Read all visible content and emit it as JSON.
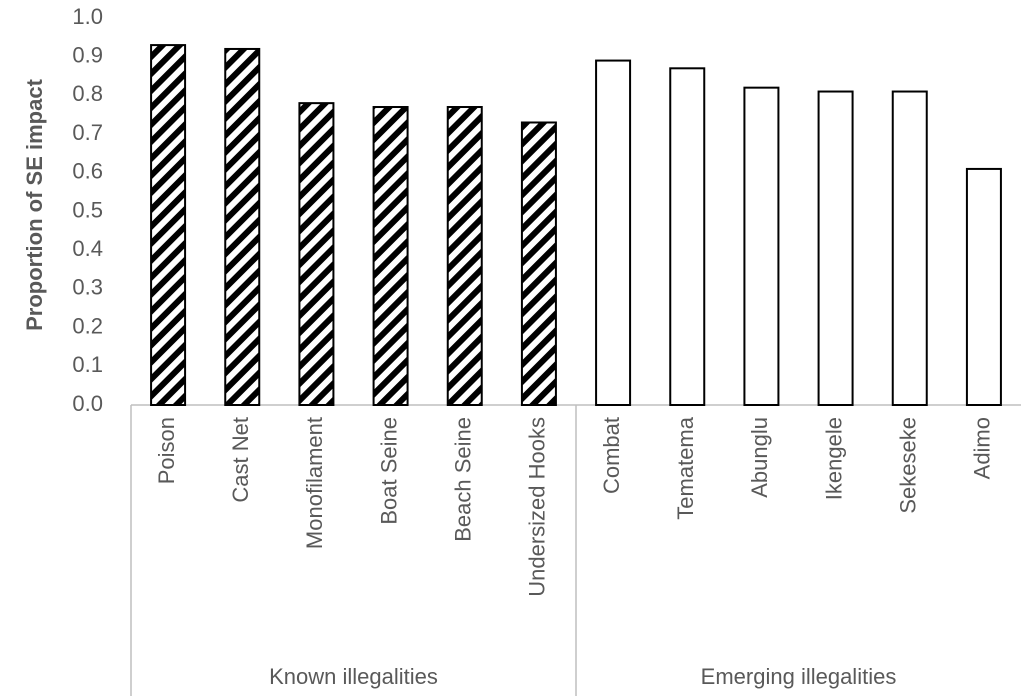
{
  "chart_data": {
    "type": "bar",
    "ylabel": "Proportion of SE impact",
    "xlabel": "",
    "ylim": [
      0,
      1.0
    ],
    "yticks": [
      "0.0",
      "0.1",
      "0.2",
      "0.3",
      "0.4",
      "0.5",
      "0.6",
      "0.7",
      "0.8",
      "0.9",
      "1.0"
    ],
    "grid": false,
    "groups": [
      {
        "name": "Known illegalities",
        "fill": "hatched",
        "categories": [
          "Poison",
          "Cast Net",
          "Monofilament",
          "Boat Seine",
          "Beach Seine",
          "Undersized Hooks"
        ],
        "values": [
          0.93,
          0.92,
          0.78,
          0.77,
          0.77,
          0.73
        ]
      },
      {
        "name": "Emerging illegalities",
        "fill": "white",
        "categories": [
          "Combat",
          "Tematema",
          "Abunglu",
          "Ikengele",
          "Sekeseke",
          "Adimo"
        ],
        "values": [
          0.89,
          0.87,
          0.82,
          0.81,
          0.81,
          0.61
        ]
      }
    ]
  },
  "colors": {
    "bar_stroke": "#000000",
    "hatch": "#000000",
    "axis": "#bfbfbf",
    "text": "#595959"
  }
}
